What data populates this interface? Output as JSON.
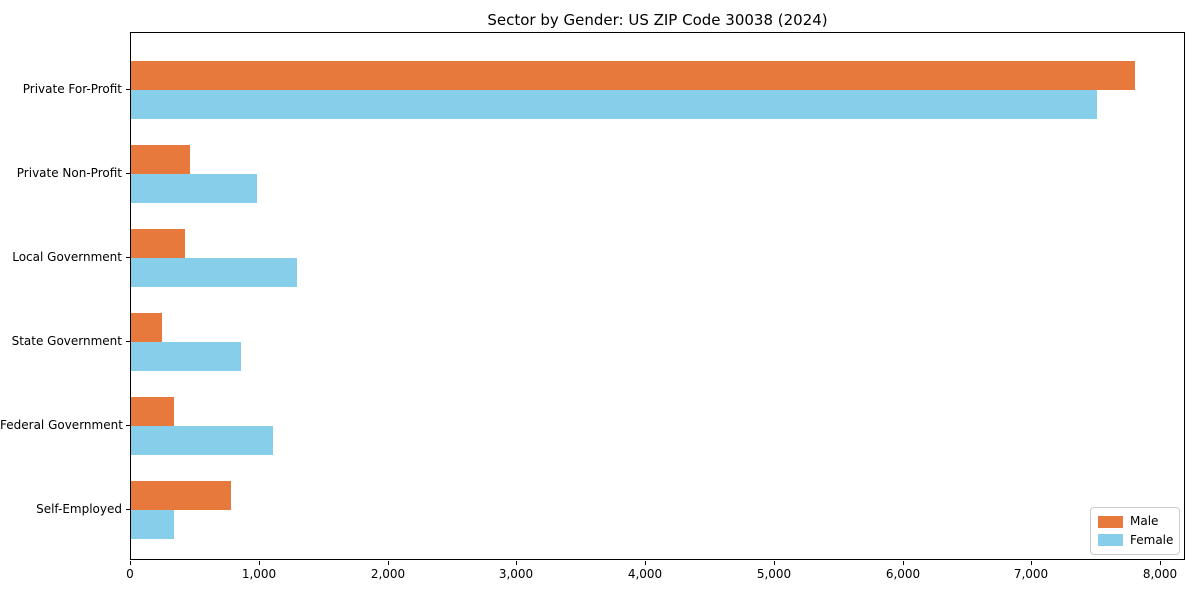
{
  "title": "Sector by Gender: US ZIP Code 30038 (2024)",
  "colors": {
    "male": "#e8793d",
    "female": "#87ceeb",
    "spine": "#000000",
    "legend_border": "#cccccc",
    "background": "#ffffff"
  },
  "legend": {
    "position": "lower right",
    "items": [
      {
        "label": "Male",
        "color_key": "male"
      },
      {
        "label": "Female",
        "color_key": "female"
      }
    ]
  },
  "chart_data": {
    "type": "bar",
    "orientation": "horizontal",
    "title": "Sector by Gender: US ZIP Code 30038 (2024)",
    "xlabel": "",
    "ylabel": "",
    "grid": false,
    "legend_position": "lower right",
    "categories": [
      "Private For-Profit",
      "Private Non-Profit",
      "Local Government",
      "State Government",
      "Federal Government",
      "Self-Employed"
    ],
    "series": [
      {
        "name": "Male",
        "color_key": "male",
        "values": [
          7800,
          460,
          420,
          240,
          335,
          780
        ]
      },
      {
        "name": "Female",
        "color_key": "female",
        "values": [
          7500,
          975,
          1290,
          855,
          1100,
          335
        ]
      }
    ],
    "xlim": [
      0,
      8000
    ],
    "xticks": [
      0,
      1000,
      2000,
      3000,
      4000,
      5000,
      6000,
      7000,
      8000
    ],
    "xtick_labels": [
      "0",
      "1,000",
      "2,000",
      "3,000",
      "4,000",
      "5,000",
      "6,000",
      "7,000",
      "8,000"
    ]
  }
}
